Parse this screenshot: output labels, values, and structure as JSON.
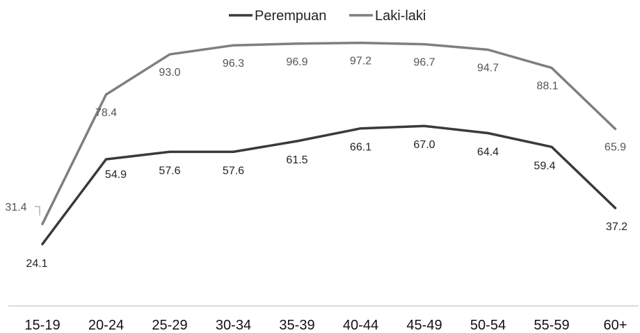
{
  "chart_data": {
    "type": "line",
    "categories": [
      "15-19",
      "20-24",
      "25-29",
      "30-34",
      "35-39",
      "40-44",
      "45-49",
      "50-54",
      "55-59",
      "60+"
    ],
    "series": [
      {
        "name": "Perempuan",
        "values": [
          24.1,
          54.9,
          57.6,
          57.6,
          61.5,
          66.1,
          67.0,
          64.4,
          59.4,
          37.2
        ],
        "color": "#3a3a3a"
      },
      {
        "name": "Laki-laki",
        "values": [
          31.4,
          78.4,
          93.0,
          96.3,
          96.9,
          97.2,
          96.7,
          94.7,
          88.1,
          65.9
        ],
        "color": "#7f7f7f"
      }
    ],
    "value_labels": {
      "Perempuan": [
        "24.1",
        "54.9",
        "57.6",
        "57.6",
        "61.5",
        "66.1",
        "67.0",
        "64.4",
        "59.4",
        "37.2"
      ],
      "Laki-laki": [
        "31.4",
        "78.4",
        "93.0",
        "96.3",
        "96.9",
        "97.2",
        "96.7",
        "94.7",
        "88.1",
        "65.9"
      ]
    },
    "legend_position": "top-center",
    "grid": false
  }
}
